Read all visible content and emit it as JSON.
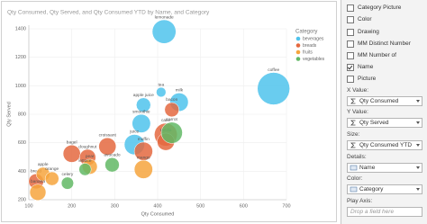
{
  "chart_data": {
    "type": "bubble",
    "title": "Qty Consumed, Qty Served, and Qty Consumed YTD by Name, and Category",
    "x_label": "Qty Consumed",
    "y_label": "Qty Served",
    "legend_title": "Category",
    "xlim": [
      100,
      700
    ],
    "xticks": [
      100,
      200,
      300,
      400,
      500,
      600,
      700
    ],
    "ylim": [
      200,
      1400
    ],
    "yticks": [
      200,
      400,
      600,
      800,
      1000,
      1200,
      1400
    ],
    "grid": true,
    "legend": "right",
    "series": [
      {
        "name": "beverages",
        "color": "#4fc3ec",
        "labels": [
          "lemonade",
          "coffee",
          "milk",
          "apple juice",
          "smoothie",
          "juice",
          "tea"
        ],
        "x": [
          415,
          670,
          450,
          367,
          362,
          346,
          408
        ],
        "values": [
          1380,
          980,
          885,
          865,
          735,
          587,
          955
        ],
        "sizes": [
          30,
          56,
          18,
          11,
          18,
          22,
          5
        ]
      },
      {
        "name": "breads",
        "color": "#e4683f",
        "labels": [
          "bacon",
          "croissant",
          "cake",
          "muffin",
          "tortilla",
          "bagel",
          "doughnut",
          "bread"
        ],
        "x": [
          433,
          283,
          419,
          367,
          419,
          200,
          237,
          117
        ],
        "values": [
          832,
          574,
          657,
          540,
          607,
          523,
          497,
          329
        ],
        "sizes": [
          11,
          16,
          28,
          18,
          16,
          16,
          14,
          12
        ]
      },
      {
        "name": "fruits",
        "color": "#f6a53d",
        "labels": [
          "mango",
          "apple",
          "pear",
          "orange",
          "banana"
        ],
        "x": [
          367,
          133,
          242,
          154,
          121
        ],
        "values": [
          413,
          380,
          432,
          348,
          252
        ],
        "sizes": [
          18,
          10,
          12,
          10,
          14
        ]
      },
      {
        "name": "vegetables",
        "color": "#62b865",
        "labels": [
          "carrot",
          "avocado",
          "lettuce",
          "celery"
        ],
        "x": [
          433,
          294,
          231,
          190
        ],
        "values": [
          670,
          445,
          413,
          316
        ],
        "sizes": [
          24,
          11,
          8,
          8
        ]
      }
    ]
  },
  "field_list": [
    {
      "label": "Category Picture",
      "checked": false
    },
    {
      "label": "Color",
      "checked": false
    },
    {
      "label": "Drawing",
      "checked": false
    },
    {
      "label": "MM Distinct Number",
      "checked": false
    },
    {
      "label": "MM Number of",
      "checked": false
    },
    {
      "label": "Name",
      "checked": true
    },
    {
      "label": "Picture",
      "checked": false
    }
  ],
  "wells": [
    {
      "label": "X Value:",
      "field": "Qty Consumed",
      "sum": true
    },
    {
      "label": "Y Value:",
      "field": "Qty Served",
      "sum": true
    },
    {
      "label": "Size:",
      "field": "Qty Consumed YTD",
      "sum": true
    },
    {
      "label": "Details:",
      "field": "Name",
      "sum": false
    },
    {
      "label": "Color:",
      "field": "Category",
      "sum": false
    },
    {
      "label": "Play Axis:",
      "placeholder": "Drop a field here"
    }
  ]
}
